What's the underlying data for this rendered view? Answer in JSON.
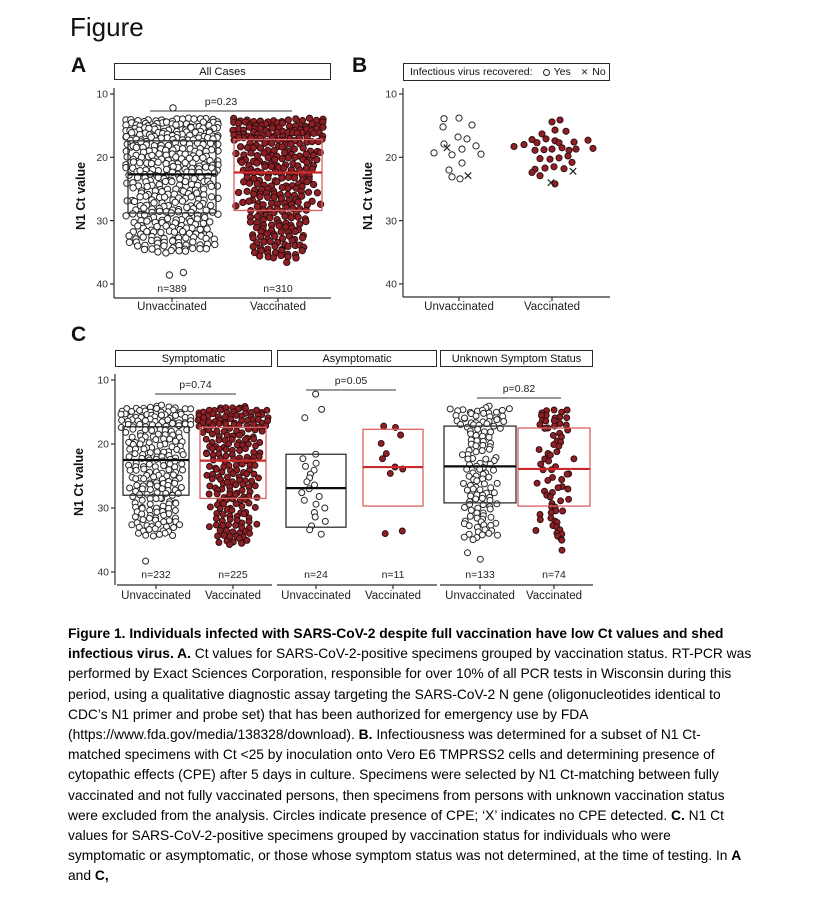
{
  "page": {
    "title": "Figure"
  },
  "colors": {
    "dot_fill": "#8e2025",
    "dot_stroke": "#2a0c0e",
    "open_fill": "#ffffff",
    "open_stroke": "#272727",
    "box_red": "#d96262",
    "median_red": "#cb2a2a",
    "box_black": "#303030",
    "median_black": "#0a0a0a",
    "axis": "#2e2e2e",
    "tick_text": "#333333"
  },
  "chart_data": [
    {
      "panel": "A",
      "type": "beeswarm-box",
      "title": "All Cases",
      "ylabel": "N1 Ct value",
      "yticks": [
        10,
        20,
        30,
        40
      ],
      "y_axis_reversed": true,
      "ylim": [
        10,
        40
      ],
      "p_label": "p=0.23",
      "groups": [
        {
          "label": "Unvaccinated",
          "n": 389,
          "n_label": "n=389",
          "style": "open",
          "min": 13.8,
          "q1": 17.4,
          "med": 22.7,
          "q3": 28.8,
          "max": 35.0,
          "outliers": [
            12.2,
            38.2,
            38.6
          ]
        },
        {
          "label": "Vaccinated",
          "n": 310,
          "n_label": "n=310",
          "style": "filled",
          "min": 13.9,
          "q1": 17.2,
          "med": 22.4,
          "q3": 28.4,
          "max": 36.0,
          "outliers": [
            36.6
          ]
        }
      ]
    },
    {
      "panel": "B",
      "type": "scatter",
      "legend": {
        "title": "Infectious virus recovered:",
        "yes_label": "Yes",
        "no_label": "No"
      },
      "ylabel": "N1 Ct value",
      "yticks": [
        10,
        20,
        30,
        40
      ],
      "y_axis_reversed": true,
      "ylim": [
        10,
        40
      ],
      "groups": [
        {
          "label": "Unvaccinated",
          "style": "open",
          "yes_points": [
            [
              -15,
              13.9
            ],
            [
              0,
              13.8
            ],
            [
              13,
              14.9
            ],
            [
              -16,
              15.2
            ],
            [
              -1,
              16.8
            ],
            [
              8,
              17.1
            ],
            [
              -15,
              17.9
            ],
            [
              3,
              18.7
            ],
            [
              17,
              18.2
            ],
            [
              -25,
              19.3
            ],
            [
              -7,
              19.6
            ],
            [
              22,
              19.5
            ],
            [
              3,
              20.9
            ],
            [
              -10,
              22.0
            ],
            [
              -7,
              23.1
            ],
            [
              1,
              23.4
            ]
          ],
          "no_points": [
            [
              -12,
              18.5
            ],
            [
              9,
              22.9
            ]
          ]
        },
        {
          "label": "Vaccinated",
          "style": "filled",
          "yes_points": [
            [
              0,
              14.4
            ],
            [
              8,
              14.1
            ],
            [
              3,
              15.7
            ],
            [
              14,
              15.9
            ],
            [
              -10,
              16.3
            ],
            [
              -20,
              17.2
            ],
            [
              -6,
              17.1
            ],
            [
              3,
              17.4
            ],
            [
              -38,
              18.3
            ],
            [
              -28,
              18.0
            ],
            [
              -15,
              17.7
            ],
            [
              7,
              17.7
            ],
            [
              22,
              17.6
            ],
            [
              36,
              17.3
            ],
            [
              41,
              18.6
            ],
            [
              -17,
              18.9
            ],
            [
              -8,
              18.8
            ],
            [
              0,
              18.7
            ],
            [
              10,
              18.5
            ],
            [
              17,
              18.9
            ],
            [
              24,
              18.7
            ],
            [
              -12,
              20.2
            ],
            [
              -2,
              20.3
            ],
            [
              7,
              20.1
            ],
            [
              16,
              19.8
            ],
            [
              -17,
              21.9
            ],
            [
              -7,
              21.7
            ],
            [
              2,
              21.5
            ],
            [
              12,
              21.8
            ],
            [
              -12,
              22.9
            ],
            [
              -20,
              22.4
            ],
            [
              3,
              24.2
            ],
            [
              20,
              20.8
            ]
          ],
          "no_points": [
            [
              21,
              22.2
            ],
            [
              -1,
              24.0
            ]
          ]
        }
      ]
    },
    {
      "panel": "C",
      "type": "beeswarm-box",
      "ylabel": "N1 Ct value",
      "yticks": [
        10,
        20,
        30,
        40
      ],
      "y_axis_reversed": true,
      "ylim": [
        10,
        40
      ],
      "facets": [
        {
          "title": "Symptomatic",
          "p_label": "p=0.74",
          "groups": [
            {
              "label": "Unvaccinated",
              "n": 232,
              "n_label": "n=232",
              "style": "open",
              "min": 14.0,
              "q1": 17.3,
              "med": 22.5,
              "q3": 28.0,
              "max": 34.5,
              "outliers": [
                38.3
              ]
            },
            {
              "label": "Vaccinated",
              "n": 225,
              "n_label": "n=225",
              "style": "filled",
              "min": 14.2,
              "q1": 17.4,
              "med": 22.6,
              "q3": 28.5,
              "max": 35.8,
              "outliers": []
            }
          ]
        },
        {
          "title": "Asymptomatic",
          "p_label": "p=0.05",
          "groups": [
            {
              "label": "Unvaccinated",
              "n": 24,
              "n_label": "n=24",
              "style": "open",
              "q1": 21.6,
              "med": 26.9,
              "q3": 33.0,
              "cts": [
                12.2,
                14.6,
                15.9,
                21.6,
                22.3,
                23.0,
                23.5,
                24.1,
                24.7,
                25.3,
                25.9,
                26.4,
                27.0,
                27.6,
                28.2,
                28.8,
                29.4,
                30.0,
                30.7,
                31.4,
                32.1,
                32.8,
                33.4,
                34.1
              ]
            },
            {
              "label": "Vaccinated",
              "n": 11,
              "n_label": "n=11",
              "style": "filled",
              "q1": 17.7,
              "med": 23.6,
              "q3": 29.7,
              "cts": [
                17.2,
                17.4,
                18.6,
                19.9,
                21.5,
                22.3,
                23.6,
                23.9,
                24.6,
                33.6,
                34.0
              ]
            }
          ]
        },
        {
          "title": "Unknown Symptom Status",
          "p_label": "p=0.82",
          "groups": [
            {
              "label": "Unvaccinated",
              "n": 133,
              "n_label": "n=133",
              "style": "open",
              "min": 14.2,
              "q1": 17.2,
              "med": 23.5,
              "q3": 29.2,
              "max": 35.0,
              "outliers": [
                37.0,
                38.0
              ]
            },
            {
              "label": "Vaccinated",
              "n": 74,
              "n_label": "n=74",
              "style": "filled",
              "min": 14.5,
              "q1": 17.5,
              "med": 23.9,
              "q3": 29.7,
              "max": 35.2,
              "outliers": [
                36.6
              ]
            }
          ]
        }
      ]
    }
  ],
  "caption": {
    "segments": [
      {
        "b": 1,
        "t": "Figure 1. Individuals infected with SARS-CoV-2 despite full vaccination have low Ct values and shed infectious virus. A."
      },
      {
        "b": 0,
        "t": " Ct values for SARS-CoV-2-positive specimens grouped by vaccination status. RT-PCR was performed by Exact Sciences Corporation, responsible for over 10% of all PCR tests in Wisconsin during this period, using a qualitative diagnostic assay targeting the SARS-CoV-2 N gene (oligonucleotides identical to CDC’s N1 primer and probe set) that has been authorized for emergency use by FDA (https://www.fda.gov/media/138328/download).  "
      },
      {
        "b": 1,
        "t": "B."
      },
      {
        "b": 0,
        "t": " Infectiousness was determined for a subset of N1 Ct-matched specimens with Ct <25 by inoculation onto Vero E6 TMPRSS2 cells and determining presence of cytopathic effects (CPE) after 5 days in culture. Specimens  were selected by N1 Ct-matching between fully vaccinated and not fully vaccinated persons, then specimens from persons with unknown vaccination status were excluded from the analysis. Circles indicate presence of CPE; ‘X’ indicates no CPE detected. "
      },
      {
        "b": 1,
        "t": "C."
      },
      {
        "b": 0,
        "t": " N1 Ct values for SARS-CoV-2-positive specimens grouped by vaccination status for individuals who were symptomatic or asymptomatic, or those whose symptom status was not determined, at the time of testing. In "
      },
      {
        "b": 1,
        "t": "A"
      },
      {
        "b": 0,
        "t": " and "
      },
      {
        "b": 1,
        "t": "C,"
      }
    ]
  }
}
